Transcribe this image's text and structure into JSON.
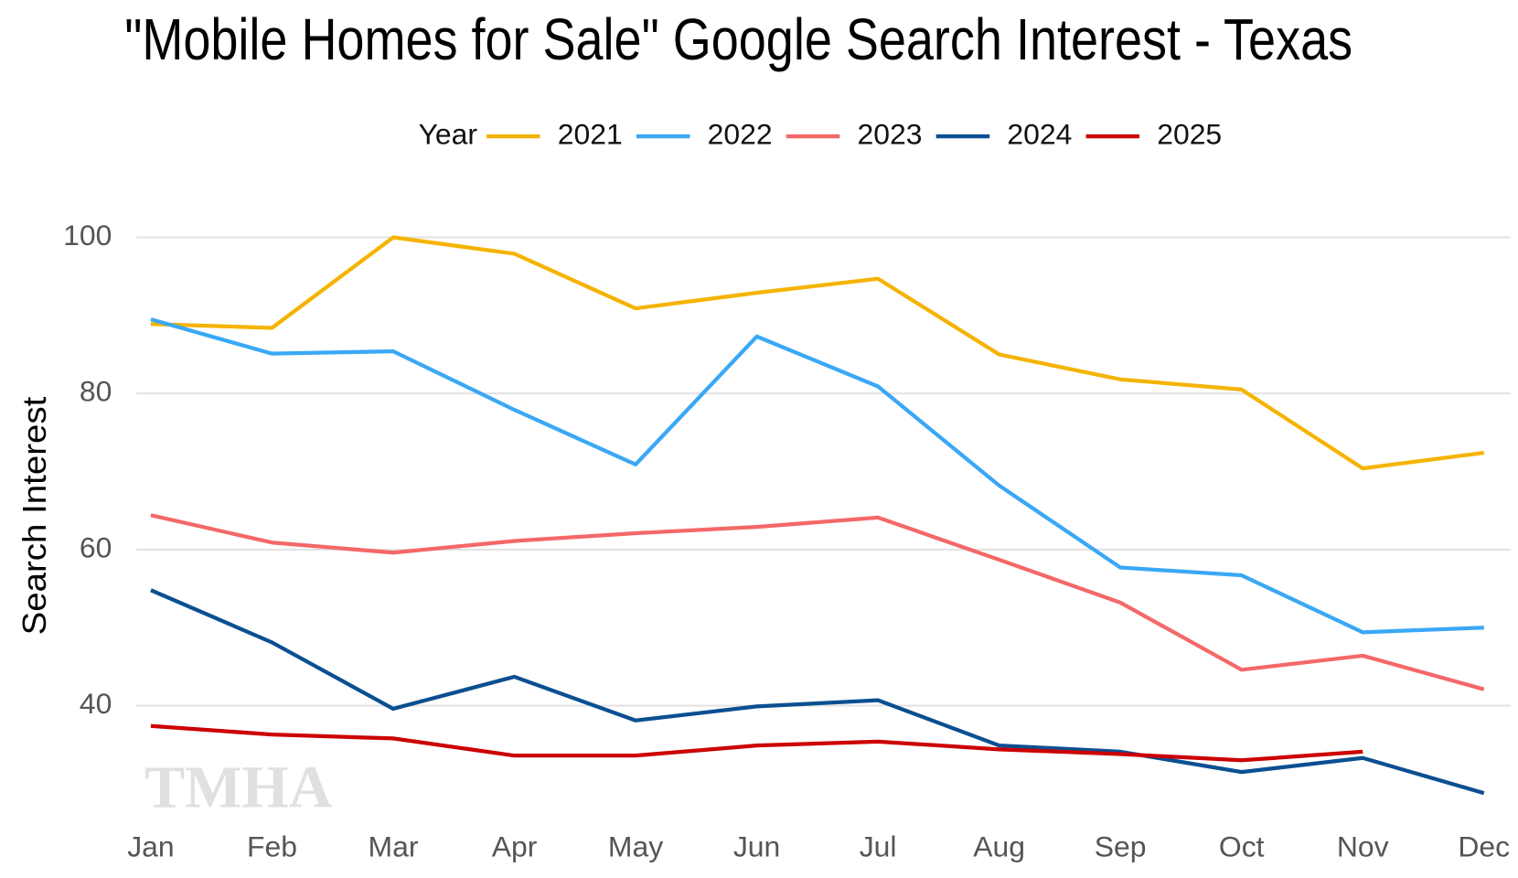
{
  "chart_data": {
    "type": "line",
    "title": "\"Mobile Homes for Sale\" Google Search Interest - Texas",
    "ylabel": "Search Interest",
    "legend_title": "Year",
    "legend": "top",
    "grid": true,
    "watermark": "TMHA",
    "categories": [
      "Jan",
      "Feb",
      "Mar",
      "Apr",
      "May",
      "Jun",
      "Jul",
      "Aug",
      "Sep",
      "Oct",
      "Nov",
      "Dec"
    ],
    "ylim": [
      26,
      104
    ],
    "yticks": [
      40,
      60,
      80,
      100
    ],
    "series": [
      {
        "name": "2021",
        "color": "#f5b300",
        "values": [
          88.9,
          88.4,
          100,
          97.9,
          90.9,
          92.9,
          94.7,
          85,
          81.8,
          80.5,
          70.4,
          72.4
        ]
      },
      {
        "name": "2022",
        "color": "#3aa8f5",
        "values": [
          89.5,
          85.1,
          85.4,
          77.9,
          70.9,
          87.3,
          80.9,
          68.2,
          57.7,
          56.7,
          49.4,
          50
        ]
      },
      {
        "name": "2023",
        "color": "#f46868",
        "values": [
          64.4,
          60.9,
          59.6,
          61.1,
          62.1,
          62.9,
          64.1,
          58.7,
          53.2,
          44.6,
          46.4,
          42.1
        ]
      },
      {
        "name": "2024",
        "color": "#0b4f91",
        "values": [
          54.8,
          48.1,
          39.6,
          43.7,
          38.1,
          39.9,
          40.7,
          34.9,
          34.1,
          31.5,
          33.3,
          28.8
        ]
      },
      {
        "name": "2025",
        "color": "#cc0000",
        "values": [
          37.4,
          36.3,
          35.8,
          33.6,
          33.6,
          34.9,
          35.4,
          34.4,
          33.8,
          33,
          34.1,
          null
        ]
      }
    ]
  }
}
